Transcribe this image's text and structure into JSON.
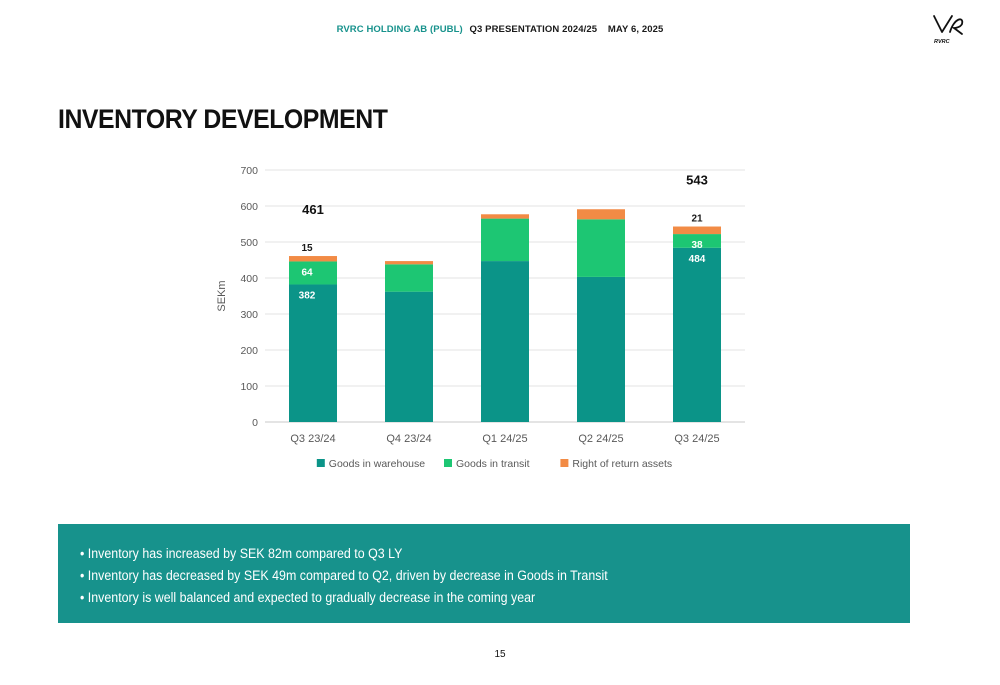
{
  "header": {
    "company": "RVRC HOLDING AB (PUBL)",
    "presentation": "Q3 PRESENTATION 2024/25",
    "date": "MAY 6, 2025"
  },
  "logo": {
    "text": "RVRC"
  },
  "page_title": "INVENTORY DEVELOPMENT",
  "chart_data": {
    "type": "bar",
    "stacked": true,
    "categories": [
      "Q3 23/24",
      "Q4 23/24",
      "Q1 24/25",
      "Q2 24/25",
      "Q3 24/25"
    ],
    "series": [
      {
        "name": "Goods in warehouse",
        "color": "#0b9488",
        "values": [
          382,
          362,
          447,
          403,
          484
        ],
        "labels": [
          "382",
          null,
          null,
          null,
          "484"
        ]
      },
      {
        "name": "Goods in transit",
        "color": "#1dc673",
        "values": [
          64,
          76,
          118,
          160,
          38
        ],
        "labels": [
          "64",
          null,
          null,
          null,
          "38"
        ]
      },
      {
        "name": "Right of return assets",
        "color": "#f28b45",
        "values": [
          15,
          9,
          12,
          28,
          21
        ],
        "labels": [
          "15",
          null,
          null,
          null,
          "21"
        ]
      }
    ],
    "totals": [
      {
        "category": "Q3 23/24",
        "label": "461"
      },
      {
        "category": "Q3 24/25",
        "label": "543"
      }
    ],
    "ylabel": "SEKm",
    "xlabel": "",
    "ylim": [
      0,
      700
    ],
    "yticks": [
      0,
      100,
      200,
      300,
      400,
      500,
      600,
      700
    ],
    "grid": true,
    "legend": "bottom"
  },
  "bullets": [
    "Inventory has increased by SEK 82m compared to Q3 LY",
    "Inventory has decreased by SEK 49m compared to Q2, driven by decrease in Goods in Transit",
    "Inventory is well balanced and expected to gradually decrease in the coming year"
  ],
  "page_number": "15"
}
